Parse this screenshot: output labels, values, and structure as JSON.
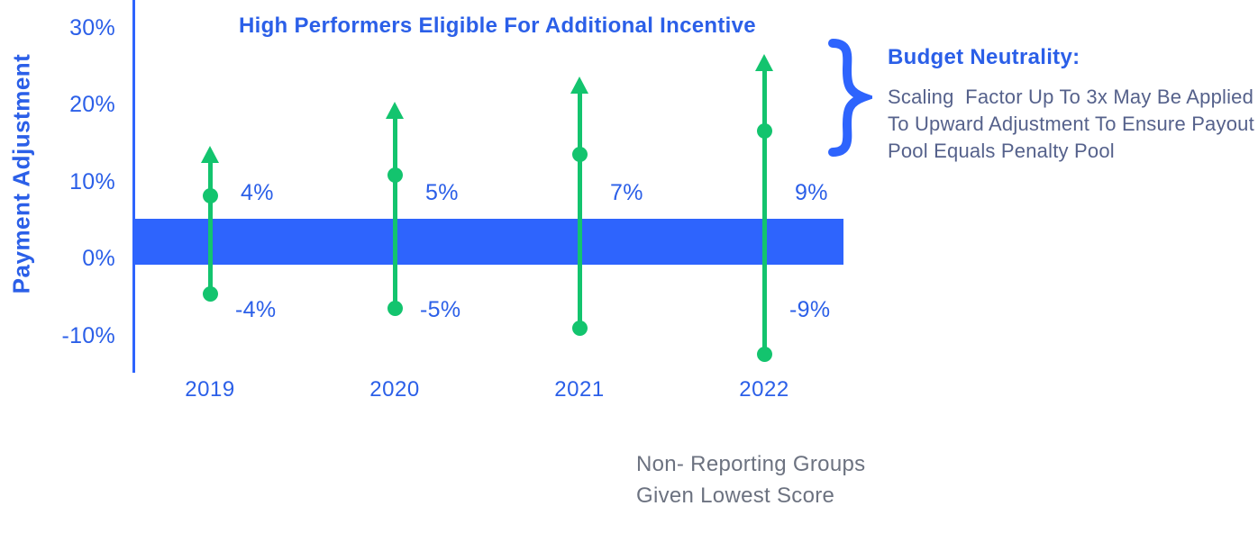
{
  "title": "High Performers Eligible For Additional Incentive",
  "yaxis": {
    "label": "Payment Adjustment",
    "ticks": [
      "30%",
      "20%",
      "10%",
      "0%",
      "-10%"
    ],
    "tick_values": [
      30,
      20,
      10,
      0,
      -10
    ]
  },
  "colors": {
    "text_blue": "#2B5FE8",
    "band_blue": "#2E64FD",
    "green": "#13C46E",
    "note_slate": "#55618B",
    "caption_gray": "#6C7280"
  },
  "chart_data": {
    "type": "scatter",
    "subtype": "range-dot-arrow",
    "title": "High Performers Eligible For Additional Incentive",
    "ylabel": "Payment Adjustment",
    "ylim": [
      -15,
      32
    ],
    "grid": false,
    "categories": [
      "2019",
      "2020",
      "2021",
      "2022"
    ],
    "band": {
      "description": "budget-neutral corridor",
      "from": 0,
      "to": 5
    },
    "series": [
      {
        "year": "2019",
        "upside_value": 4,
        "upside_label": "4%",
        "downside_value": -4,
        "downside_label": "-4%",
        "upper_dot": 8.1,
        "lower_dot": -4.6,
        "arrow_tip": 14.6
      },
      {
        "year": "2020",
        "upside_value": 5,
        "upside_label": "5%",
        "downside_value": -5,
        "downside_label": "-5%",
        "upper_dot": 10.8,
        "lower_dot": -6.5,
        "arrow_tip": 20.3
      },
      {
        "year": "2021",
        "upside_value": 7,
        "upside_label": "7%",
        "downside_value": -7,
        "downside_label": null,
        "upper_dot": 13.5,
        "lower_dot": -9.1,
        "arrow_tip": 23.6
      },
      {
        "year": "2022",
        "upside_value": 9,
        "upside_label": "9%",
        "downside_value": -9,
        "downside_label": "-9%",
        "upper_dot": 16.6,
        "lower_dot": -12.4,
        "arrow_tip": 26.5
      }
    ],
    "annotations": [
      "High Performers Eligible For Additional Incentive",
      "Budget Neutrality: Scaling Factor Up To 3x May Be Applied To Upward Adjustment To Ensure Payout Pool Equals Penalty Pool",
      "Non- Reporting Groups Given Lowest Score"
    ]
  },
  "budget_note": {
    "heading": "Budget Neutrality:",
    "lines": [
      "Scaling  Factor Up To 3x May Be Applied",
      "To Upward Adjustment To Ensure Payout",
      "Pool Equals Penalty Pool"
    ]
  },
  "caption": {
    "lines": [
      "Non- Reporting Groups",
      "Given Lowest Score"
    ]
  }
}
